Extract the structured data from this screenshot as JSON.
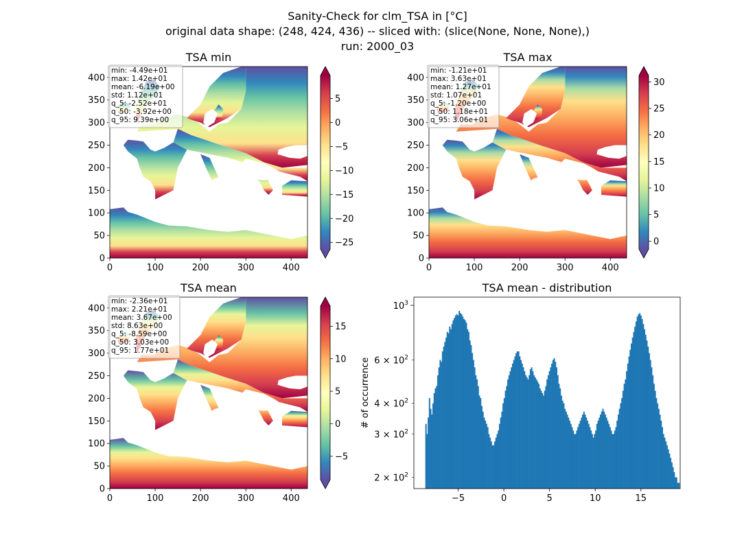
{
  "figure": {
    "title_line1": "Sanity-Check for clm_TSA in [°C]",
    "title_line2": "original data shape: (248, 424, 436) -- sliced with: (slice(None, None, None),)",
    "title_line3": "run: 2000_03"
  },
  "colors": {
    "histogram_bar": "#1f77b4",
    "colormap": [
      "#5e4fa2",
      "#3288bd",
      "#66c2a5",
      "#abdda4",
      "#e6f598",
      "#ffffbf",
      "#fee08b",
      "#fdae61",
      "#f46d43",
      "#d53e4f",
      "#9e0142"
    ]
  },
  "chart_data": [
    {
      "type": "heatmap",
      "title": "TSA min",
      "colormap": "Spectral_r",
      "x_ticks": [
        "0",
        "100",
        "200",
        "300",
        "400"
      ],
      "y_ticks": [
        "0",
        "50",
        "100",
        "150",
        "200",
        "250",
        "300",
        "350",
        "400"
      ],
      "xlim": [
        0,
        436
      ],
      "ylim": [
        0,
        424
      ],
      "colorbar": {
        "ticks": [
          "5",
          "0",
          "−5",
          "−10",
          "−15",
          "−20",
          "−25"
        ],
        "tick_values": [
          5,
          0,
          -5,
          -10,
          -15,
          -20,
          -25
        ],
        "range": [
          -26.4,
          9.8
        ],
        "extend": "both"
      },
      "stats": [
        "min: -4.49e+01",
        "max: 1.42e+01",
        "mean: -6.19e+00",
        "std: 1.12e+01",
        "q_5: -2.52e+01",
        "q_50: -3.92e+00",
        "q_95: 9.39e+00"
      ]
    },
    {
      "type": "heatmap",
      "title": "TSA max",
      "colormap": "Spectral_r",
      "x_ticks": [
        "0",
        "100",
        "200",
        "300",
        "400"
      ],
      "y_ticks": [
        "0",
        "50",
        "100",
        "150",
        "200",
        "250",
        "300",
        "350",
        "400"
      ],
      "xlim": [
        0,
        436
      ],
      "ylim": [
        0,
        424
      ],
      "colorbar": {
        "ticks": [
          "30",
          "25",
          "20",
          "15",
          "10",
          "5",
          "0"
        ],
        "tick_values": [
          30,
          25,
          20,
          15,
          10,
          5,
          0
        ],
        "range": [
          -1.5,
          31.2
        ],
        "extend": "both"
      },
      "stats": [
        "min: -1.21e+01",
        "max: 3.63e+01",
        "mean: 1.27e+01",
        "std: 1.07e+01",
        "q_5: -1.20e+00",
        "q_50: 1.18e+01",
        "q_95: 3.06e+01"
      ]
    },
    {
      "type": "heatmap",
      "title": "TSA mean",
      "colormap": "Spectral_r",
      "x_ticks": [
        "0",
        "100",
        "200",
        "300",
        "400"
      ],
      "y_ticks": [
        "0",
        "50",
        "100",
        "150",
        "200",
        "250",
        "300",
        "350",
        "400"
      ],
      "xlim": [
        0,
        436
      ],
      "ylim": [
        0,
        424
      ],
      "colorbar": {
        "ticks": [
          "15",
          "10",
          "5",
          "0",
          "−5"
        ],
        "tick_values": [
          15,
          10,
          5,
          0,
          -5
        ],
        "range": [
          -8.6,
          18.1
        ],
        "extend": "both"
      },
      "stats": [
        "min: -2.36e+01",
        "max: 2.21e+01",
        "mean: 3.67e+00",
        "std: 8.63e+00",
        "q_5: -8.59e+00",
        "q_50: 3.03e+00",
        "q_95: 1.77e+01"
      ]
    },
    {
      "type": "bar",
      "title": "TSA mean - distribution",
      "ylabel": "# of occurrence",
      "yscale": "log",
      "x_ticks": [
        "−5",
        "0",
        "5",
        "10",
        "15"
      ],
      "x_tick_values": [
        -5,
        0,
        5,
        10,
        15
      ],
      "xlim": [
        -9.85,
        19.3
      ],
      "ylim": [
        180,
        1080
      ],
      "y_major_ticks": [
        {
          "value": 1000,
          "base": "10",
          "exp": "3"
        }
      ],
      "y_minor_ticks": [
        {
          "value": 200,
          "coef": "2 × 10",
          "exp": "2"
        },
        {
          "value": 300,
          "coef": "3 × 10",
          "exp": "2"
        },
        {
          "value": 400,
          "coef": "4 × 10",
          "exp": "2"
        },
        {
          "value": 600,
          "coef": "6 × 10",
          "exp": "2"
        }
      ],
      "x_start": -8.6,
      "bin_width": 0.13,
      "values": [
        330,
        300,
        350,
        420,
        380,
        360,
        400,
        440,
        460,
        470,
        520,
        560,
        600,
        590,
        650,
        680,
        710,
        740,
        780,
        770,
        820,
        800,
        840,
        870,
        890,
        910,
        920,
        910,
        950,
        930,
        920,
        900,
        880,
        870,
        850,
        800,
        780,
        720,
        690,
        640,
        600,
        560,
        520,
        500,
        470,
        430,
        420,
        390,
        370,
        350,
        340,
        330,
        320,
        300,
        290,
        280,
        270,
        270,
        280,
        290,
        300,
        310,
        330,
        350,
        370,
        400,
        420,
        450,
        470,
        500,
        520,
        540,
        560,
        580,
        600,
        620,
        640,
        650,
        650,
        620,
        600,
        580,
        560,
        540,
        520,
        510,
        500,
        520,
        550,
        560,
        540,
        520,
        510,
        500,
        490,
        480,
        460,
        450,
        440,
        430,
        450,
        470,
        500,
        520,
        540,
        560,
        580,
        600,
        610,
        590,
        560,
        520,
        480,
        460,
        430,
        410,
        400,
        380,
        370,
        360,
        350,
        340,
        330,
        320,
        310,
        300,
        300,
        310,
        320,
        330,
        340,
        350,
        360,
        370,
        360,
        350,
        340,
        330,
        320,
        310,
        300,
        290,
        300,
        310,
        330,
        340,
        350,
        360,
        370,
        380,
        370,
        360,
        350,
        340,
        330,
        320,
        310,
        300,
        300,
        310,
        320,
        340,
        360,
        380,
        400,
        420,
        450,
        480,
        500,
        540,
        580,
        620,
        660,
        700,
        740,
        780,
        820,
        860,
        900,
        920,
        930,
        910,
        880,
        840,
        800,
        760,
        720,
        680,
        640,
        600,
        560,
        520,
        480,
        450,
        420,
        400,
        380,
        360,
        340,
        320,
        300,
        290,
        280,
        270,
        260,
        250,
        240,
        230,
        220,
        210,
        200,
        200,
        190,
        190
      ]
    }
  ]
}
